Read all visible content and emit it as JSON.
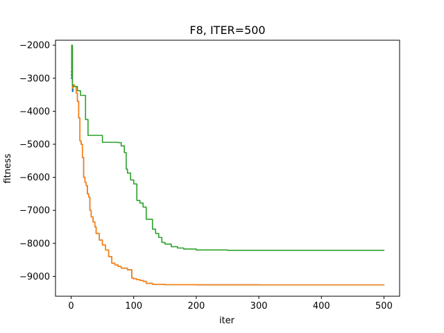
{
  "chart_data": {
    "type": "line",
    "title": "F8, ITER=500",
    "xlabel": "iter",
    "ylabel": "fitness",
    "xlim": [
      -25,
      525
    ],
    "ylim": [
      -9600,
      -1850
    ],
    "xticks": [
      0,
      100,
      200,
      300,
      400,
      500
    ],
    "yticks": [
      -9000,
      -8000,
      -7000,
      -6000,
      -5000,
      -4000,
      -3000,
      -2000
    ],
    "xtick_labels": [
      "0",
      "100",
      "200",
      "300",
      "400",
      "500"
    ],
    "ytick_labels": [
      "−9000",
      "−8000",
      "−7000",
      "−6000",
      "−5000",
      "−4000",
      "−3000",
      "−2000"
    ],
    "grid": false,
    "series": [
      {
        "color": "#1f77b4",
        "x": [
          0,
          1,
          2,
          3,
          5,
          8,
          10,
          12,
          14,
          16,
          18,
          20,
          22,
          24,
          26,
          28,
          30,
          32,
          35,
          38,
          40,
          45,
          50,
          55,
          60,
          65,
          70,
          75,
          80,
          90,
          97,
          100,
          105,
          110,
          115,
          120,
          130,
          150,
          200,
          250,
          300,
          400,
          500
        ],
        "y": [
          -3000,
          -2050,
          -3400,
          -3200,
          -3250,
          -3450,
          -3700,
          -4200,
          -4900,
          -5000,
          -5400,
          -6000,
          -6150,
          -6250,
          -6500,
          -6600,
          -7000,
          -7200,
          -7350,
          -7500,
          -7700,
          -7900,
          -8050,
          -8200,
          -8400,
          -8600,
          -8650,
          -8700,
          -8750,
          -8800,
          -9050,
          -9070,
          -9100,
          -9120,
          -9150,
          -9210,
          -9240,
          -9250,
          -9255,
          -9255,
          -9256,
          -9256,
          -9256
        ]
      },
      {
        "color": "#ff7f0e",
        "x": [
          0,
          1,
          2,
          3,
          5,
          8,
          10,
          12,
          14,
          16,
          18,
          20,
          22,
          24,
          26,
          28,
          30,
          32,
          35,
          38,
          40,
          45,
          50,
          55,
          60,
          65,
          70,
          75,
          80,
          90,
          97,
          100,
          105,
          110,
          115,
          120,
          130,
          150,
          200,
          250,
          300,
          400,
          500
        ],
        "y": [
          -2800,
          -2000,
          -3300,
          -3200,
          -3250,
          -3450,
          -3700,
          -4200,
          -4900,
          -5000,
          -5400,
          -6000,
          -6150,
          -6250,
          -6500,
          -6600,
          -7000,
          -7200,
          -7350,
          -7500,
          -7700,
          -7900,
          -8050,
          -8200,
          -8400,
          -8600,
          -8650,
          -8700,
          -8750,
          -8800,
          -9050,
          -9070,
          -9100,
          -9120,
          -9150,
          -9210,
          -9240,
          -9250,
          -9255,
          -9255,
          -9256,
          -9256,
          -9256
        ]
      },
      {
        "color": "#2ca02c",
        "x": [
          0,
          1,
          2,
          3,
          5,
          10,
          15,
          20,
          23,
          27,
          30,
          40,
          50,
          55,
          75,
          80,
          85,
          88,
          90,
          95,
          100,
          105,
          110,
          115,
          120,
          130,
          135,
          140,
          145,
          150,
          160,
          170,
          180,
          200,
          250,
          300,
          400,
          500
        ],
        "y": [
          -2900,
          -2000,
          -3200,
          -3250,
          -3250,
          -3380,
          -3520,
          -3520,
          -4250,
          -4730,
          -4730,
          -4730,
          -4940,
          -4940,
          -4950,
          -5050,
          -5250,
          -5750,
          -5870,
          -6080,
          -6200,
          -6700,
          -6780,
          -6900,
          -7270,
          -7570,
          -7700,
          -7820,
          -7970,
          -8020,
          -8100,
          -8140,
          -8170,
          -8200,
          -8210,
          -8210,
          -8210,
          -8210
        ]
      }
    ]
  }
}
